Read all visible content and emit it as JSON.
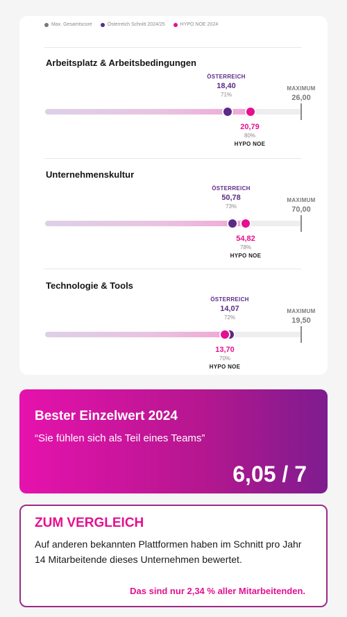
{
  "legend": {
    "items": [
      {
        "label": "Max. Gesamtscore",
        "color": "#777777"
      },
      {
        "label": "Österreich Schnitt 2024/25",
        "color": "#5b2a86"
      },
      {
        "label": "HYPO NOE 2024",
        "color": "#e4108f"
      }
    ]
  },
  "sections": [
    {
      "title": "Arbeitsplatz & Arbeitsbedingungen",
      "austria": {
        "head": "ÖSTERREICH",
        "value": "18,40",
        "pct": "71%",
        "level": 0.71
      },
      "hypo": {
        "head": "HYPO NOE",
        "value": "20,79",
        "pct": "80%",
        "level": 0.8
      },
      "maximum": {
        "head": "MAXIMUM",
        "value": "26,00"
      }
    },
    {
      "title": "Unternehmenskultur",
      "austria": {
        "head": "ÖSTERREICH",
        "value": "50,78",
        "pct": "73%",
        "level": 0.73
      },
      "hypo": {
        "head": "HYPO NOE",
        "value": "54,82",
        "pct": "78%",
        "level": 0.78
      },
      "maximum": {
        "head": "MAXIMUM",
        "value": "70,00"
      }
    },
    {
      "title": "Technologie & Tools",
      "austria": {
        "head": "ÖSTERREICH",
        "value": "14,07",
        "pct": "72%",
        "level": 0.72
      },
      "hypo": {
        "head": "HYPO NOE",
        "value": "13,70",
        "pct": "70%",
        "level": 0.7
      },
      "maximum": {
        "head": "MAXIMUM",
        "value": "19,50"
      }
    }
  ],
  "best": {
    "title": "Bester Einzelwert 2024",
    "quote": "“Sie fühlen sich als Teil eines Teams”",
    "score": "6,05 / 7"
  },
  "compare": {
    "heading": "ZUM VERGLEICH",
    "body": "Auf anderen bekannten Plattformen haben im Schnitt pro Jahr 14 Mitarbeitende dieses Unternehmen bewertet.",
    "note": "Das sind nur 2,34 % aller Mitarbeitenden."
  }
}
